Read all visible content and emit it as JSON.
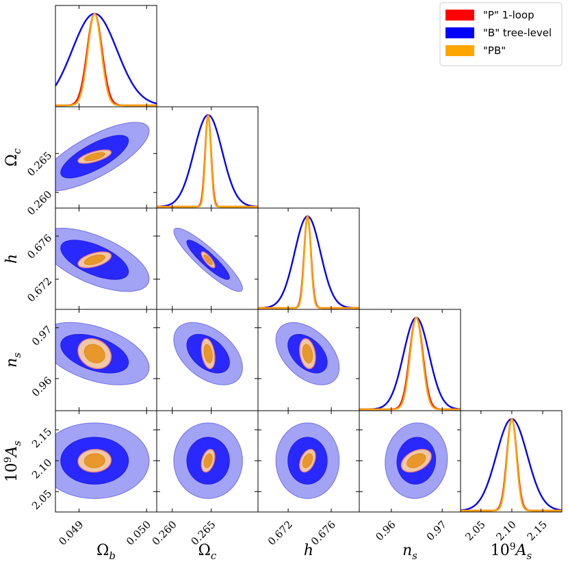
{
  "chart_data": {
    "type": "corner",
    "params": [
      {
        "key": "omega_b",
        "label": "Ω_b",
        "range": [
          0.04865,
          0.05015
        ],
        "ticks": [
          {
            "value": 0.049,
            "text": "0.049"
          },
          {
            "value": 0.05,
            "text": "0.050"
          }
        ],
        "mean": 0.04923,
        "sigma": {
          "P": 0.00011,
          "B": 0.00033,
          "PB": 0.0001
        }
      },
      {
        "key": "omega_c",
        "label": "Ω_c",
        "range": [
          0.258,
          0.271
        ],
        "ticks": [
          {
            "value": 0.26,
            "text": "0.260"
          },
          {
            "value": 0.265,
            "text": "0.265"
          }
        ],
        "mean": 0.2646,
        "sigma": {
          "P": 0.00038,
          "B": 0.0018,
          "PB": 0.00035
        }
      },
      {
        "key": "h",
        "label": "h",
        "range": [
          0.6692,
          0.6786
        ],
        "ticks": [
          {
            "value": 0.672,
            "text": "0.672"
          },
          {
            "value": 0.676,
            "text": "0.676"
          }
        ],
        "mean": 0.6738,
        "sigma": {
          "P": 0.00032,
          "B": 0.0012,
          "PB": 0.0003
        }
      },
      {
        "key": "n_s",
        "label": "n_s",
        "range": [
          0.9537,
          0.9736
        ],
        "ticks": [
          {
            "value": 0.96,
            "text": "0.96"
          },
          {
            "value": 0.97,
            "text": "0.97"
          }
        ],
        "mean": 0.9649,
        "sigma": {
          "P": 0.0013,
          "B": 0.0025,
          "PB": 0.0012
        }
      },
      {
        "key": "As",
        "label": "10^9 A_s",
        "range": [
          2.017,
          2.181
        ],
        "ticks": [
          {
            "value": 2.05,
            "text": "2.05"
          },
          {
            "value": 2.1,
            "text": "2.10"
          },
          {
            "value": 2.15,
            "text": "2.15"
          }
        ],
        "mean": 2.1,
        "sigma": {
          "P": 0.008,
          "B": 0.025,
          "PB": 0.0075
        }
      }
    ],
    "correlations": [
      {
        "pair": [
          0,
          1
        ],
        "B": 0.75,
        "PB": 0.65
      },
      {
        "pair": [
          0,
          2
        ],
        "B": -0.6,
        "PB": 0.5
      },
      {
        "pair": [
          1,
          2
        ],
        "B": -0.9,
        "PB": -0.8
      },
      {
        "pair": [
          0,
          3
        ],
        "B": -0.45,
        "PB": -0.2
      },
      {
        "pair": [
          1,
          3
        ],
        "B": -0.45,
        "PB": -0.3
      },
      {
        "pair": [
          2,
          3
        ],
        "B": -0.45,
        "PB": -0.25
      },
      {
        "pair": [
          0,
          4
        ],
        "B": 0.0,
        "PB": 0.05
      },
      {
        "pair": [
          1,
          4
        ],
        "B": 0.0,
        "PB": 0.35
      },
      {
        "pair": [
          2,
          4
        ],
        "B": 0.0,
        "PB": 0.4
      },
      {
        "pair": [
          3,
          4
        ],
        "B": 0.05,
        "PB": 0.4
      }
    ],
    "series": [
      {
        "name": "\"P\" 1-loop",
        "key": "P",
        "color": "#ff0000"
      },
      {
        "name": "\"B\" tree-level",
        "key": "B",
        "color": "#0000ff"
      },
      {
        "name": "\"PB\"",
        "key": "PB",
        "color": "#ffa500"
      }
    ],
    "contour_levels": [
      "68%",
      "95%"
    ],
    "legend_position": "top-right"
  }
}
